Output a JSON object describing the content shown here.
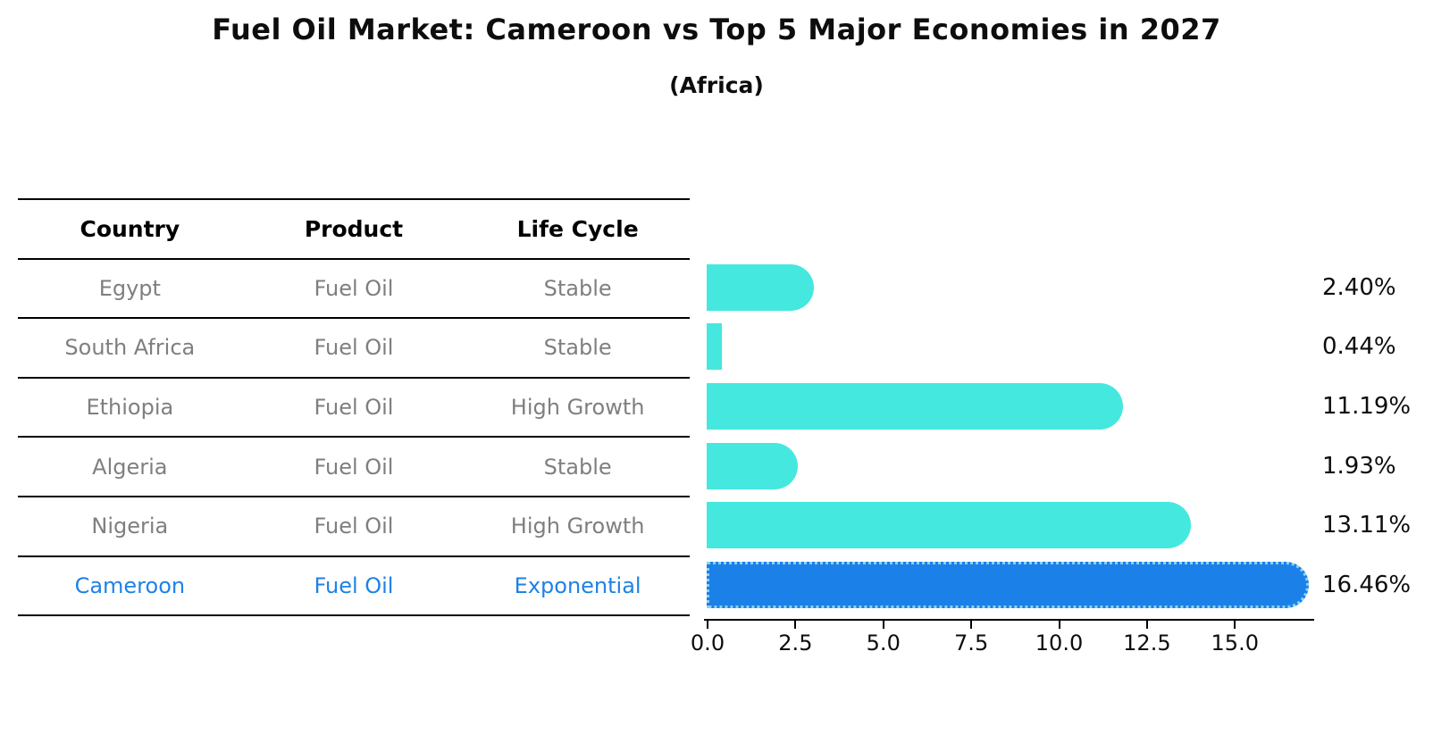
{
  "title": "Fuel Oil Market: Cameroon vs Top 5 Major Economies in 2027",
  "subtitle": "(Africa)",
  "colors": {
    "bar": "#45E8DE",
    "highlight_bar": "#1B80E8",
    "highlight_border": "#8CD2F0",
    "row_text": "#7f7f7f",
    "highlight_text": "#1E82E6",
    "header_text": "#000000",
    "line": "#000000"
  },
  "table": {
    "headers": [
      "Country",
      "Product",
      "Life Cycle"
    ],
    "rows": [
      {
        "country": "Egypt",
        "product": "Fuel Oil",
        "life_cycle": "Stable",
        "highlight": false
      },
      {
        "country": "South Africa",
        "product": "Fuel Oil",
        "life_cycle": "Stable",
        "highlight": false
      },
      {
        "country": "Ethiopia",
        "product": "Fuel Oil",
        "life_cycle": "High Growth",
        "highlight": false
      },
      {
        "country": "Algeria",
        "product": "Fuel Oil",
        "life_cycle": "Stable",
        "highlight": false
      },
      {
        "country": "Nigeria",
        "product": "Fuel Oil",
        "life_cycle": "High Growth",
        "highlight": false
      },
      {
        "country": "Cameroon",
        "product": "Fuel Oil",
        "life_cycle": "Exponential",
        "highlight": true
      }
    ]
  },
  "chart_data": {
    "type": "bar",
    "orientation": "horizontal",
    "title": "Fuel Oil Market: Cameroon vs Top 5 Major Economies in 2027 (Africa)",
    "categories": [
      "Egypt",
      "South Africa",
      "Ethiopia",
      "Algeria",
      "Nigeria",
      "Cameroon"
    ],
    "values": [
      2.4,
      0.44,
      11.19,
      1.93,
      13.11,
      16.46
    ],
    "value_labels": [
      "2.40%",
      "0.44%",
      "11.19%",
      "1.93%",
      "13.11%",
      "16.46%"
    ],
    "highlight_index": 5,
    "x_tick_values": [
      0,
      2.5,
      5,
      7.5,
      10,
      12.5,
      15
    ],
    "x_tick_labels": [
      "0.0",
      "2.5",
      "5.0",
      "7.5",
      "10.0",
      "12.5",
      "15.0"
    ],
    "xlim": [
      0,
      17.2
    ],
    "grid": false,
    "legend": false,
    "bar_color": "#45E8DE",
    "highlight_color": "#1B80E8"
  }
}
